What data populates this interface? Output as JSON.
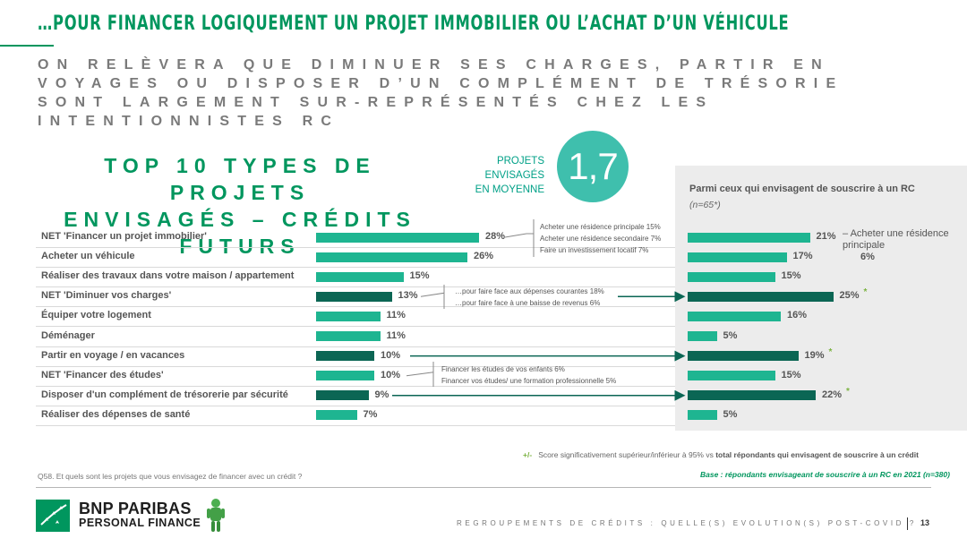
{
  "title": "…POUR FINANCER LOGIQUEMENT UN PROJET IMMOBILIER OU L’ACHAT D’UN VÉHICULE",
  "subtitle": "ON RELÈVERA QUE DIMINUER SES CHARGES, PARTIR EN VOYAGES OU DISPOSER D’UN COMPLÉMENT DE TRÉSORIE SONT LARGEMENT SUR-REPRÉSENTÉS CHEZ LES INTENTIONNISTES RC",
  "chart_heading": {
    "line1": "TOP 10 TYPES DE PROJETS",
    "line2": "ENVISAGÉS – CRÉDITS FUTURS"
  },
  "average": {
    "label_line1": "PROJETS ENVISAGÉS",
    "label_line2": "EN MOYENNE",
    "value": "1,7"
  },
  "panel": {
    "title": "Parmi ceux qui envisagent de souscrire à un RC",
    "base": "(n=65*)"
  },
  "chart_data": {
    "type": "bar",
    "orientation": "horizontal",
    "categories": [
      "NET 'Financer un projet immobilier'",
      "Acheter un véhicule",
      "Réaliser des travaux dans votre maison / appartement",
      "NET 'Diminuer vos charges'",
      "Équiper votre logement",
      "Déménager",
      "Partir en voyage / en vacances",
      "NET 'Financer des études'",
      "Disposer d'un complément de trésorerie par sécurité",
      "Réaliser des dépenses de santé"
    ],
    "series": [
      {
        "values": [
          28,
          26,
          15,
          13,
          11,
          11,
          10,
          10,
          9,
          7
        ],
        "labels": [
          "28%",
          "26%",
          "15%",
          "13%",
          "11%",
          "11%",
          "10%",
          "10%",
          "9%",
          "7%"
        ],
        "highlight": [
          false,
          false,
          false,
          true,
          false,
          false,
          true,
          false,
          true,
          false
        ]
      },
      {
        "name": "Parmi ceux qui envisagent de souscrire à un RC",
        "values": [
          21,
          17,
          15,
          25,
          16,
          5,
          19,
          15,
          22,
          5
        ],
        "labels": [
          "21%",
          "17%",
          "15%",
          "25%",
          "16%",
          "5%",
          "19%",
          "15%",
          "22%",
          "5%"
        ],
        "significant": [
          false,
          false,
          false,
          true,
          false,
          false,
          true,
          false,
          true,
          false
        ],
        "highlight": [
          false,
          false,
          false,
          true,
          false,
          false,
          true,
          false,
          true,
          false
        ]
      }
    ],
    "xlim": [
      0,
      30
    ],
    "colors": {
      "normal": "#1eb591",
      "highlight": "#0b6654"
    }
  },
  "sub_notes": {
    "immobilier": [
      "Acheter une résidence principale 15%",
      "Acheter une résidence secondaire 7%",
      "Faire un investissement locatif 7%"
    ],
    "charges": [
      "…pour faire face aux dépenses courantes 18%",
      "…pour faire face à une baisse de revenus 6%"
    ],
    "etudes": [
      "Financer les études de vos enfants 6%",
      "Financer vos études/ une formation professionnelle 5%"
    ]
  },
  "side_note": {
    "text": "Acheter une résidence principale",
    "value": "6%"
  },
  "star_symbol": "*",
  "legend": {
    "symbol": "+/-",
    "text": "Score significativement supérieur/inférieur à 95% vs",
    "bold": "total répondants qui envisagent de souscrire à un crédit"
  },
  "base_note": "Base : répondants envisageant de souscrire à un RC en 2021 (n=380)",
  "question": "Q58. Et quels sont les projets que vous envisagez de financer avec un crédit ?",
  "logo": {
    "name": "BNP PARIBAS",
    "sub": "PERSONAL FINANCE"
  },
  "footer": {
    "text": "REGROUPEMENTS DE CRÉDITS : QUELLE(S) EVOLUTION(S) POST-COVID ?",
    "page": "13"
  }
}
